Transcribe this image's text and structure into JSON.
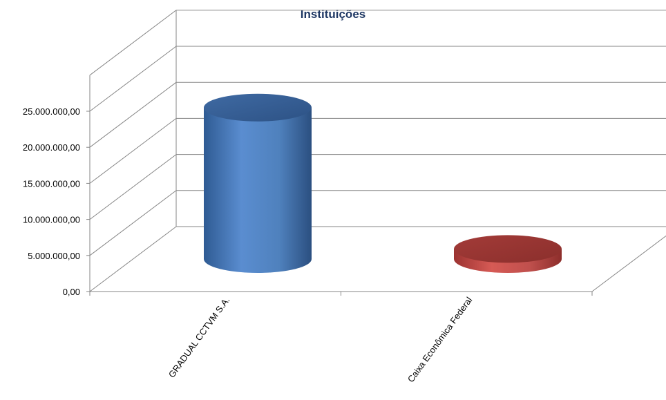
{
  "chart_data": {
    "type": "bar",
    "style": "3d-cylinder",
    "title": "Instituições",
    "categories": [
      "GRADUAL CCTVM S.A.",
      "Caixa Econômica Federal"
    ],
    "series": [
      {
        "values": [
          21000000,
          1400000
        ]
      }
    ],
    "ylim": [
      0,
      25000000
    ],
    "yticks": [
      "0,00",
      "5.000.000,00",
      "10.000.000,00",
      "15.000.000,00",
      "20.000.000,00",
      "25.000.000,00"
    ],
    "ytick_values": [
      0,
      5000000,
      10000000,
      15000000,
      20000000,
      25000000
    ],
    "grid": true,
    "legend": "none",
    "colors": {
      "title": "#1f3864",
      "bars": [
        "#4f81bd",
        "#c0504d"
      ],
      "grid": "#868686"
    }
  }
}
